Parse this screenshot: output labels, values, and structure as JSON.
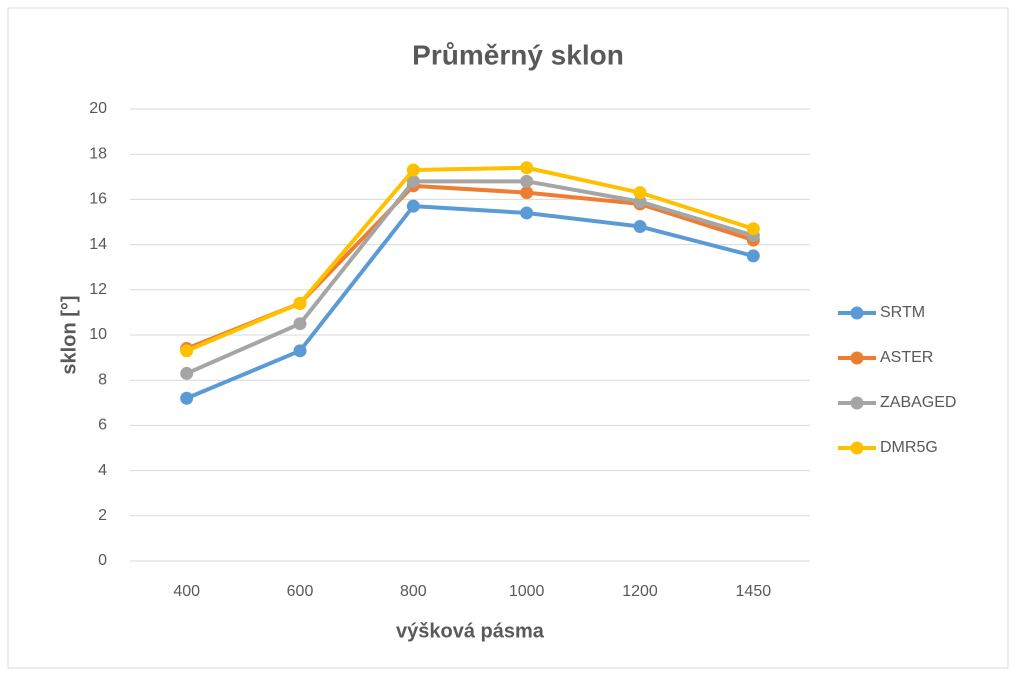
{
  "chart_data": {
    "type": "line",
    "title": "Průměrný sklon",
    "x_label": "výšková pásma",
    "y_label": "sklon [°]",
    "categories": [
      "400",
      "600",
      "800",
      "1000",
      "1200",
      "1450"
    ],
    "series": [
      {
        "name": "SRTM",
        "color": "#5b9bd5",
        "values": [
          7.2,
          9.3,
          15.7,
          15.4,
          14.8,
          13.5
        ]
      },
      {
        "name": "ASTER",
        "color": "#ed7d31",
        "values": [
          9.4,
          11.4,
          16.6,
          16.3,
          15.8,
          14.2
        ]
      },
      {
        "name": "ZABAGED",
        "color": "#a5a5a5",
        "values": [
          8.3,
          10.5,
          16.8,
          16.8,
          15.9,
          14.4
        ]
      },
      {
        "name": "DMR5G",
        "color": "#ffc000",
        "values": [
          9.3,
          11.4,
          17.3,
          17.4,
          16.3,
          14.7
        ]
      }
    ],
    "ylim": [
      0,
      20
    ],
    "yticks": [
      0,
      2,
      4,
      6,
      8,
      10,
      12,
      14,
      16,
      18,
      20
    ],
    "grid": true,
    "legend": "right"
  }
}
